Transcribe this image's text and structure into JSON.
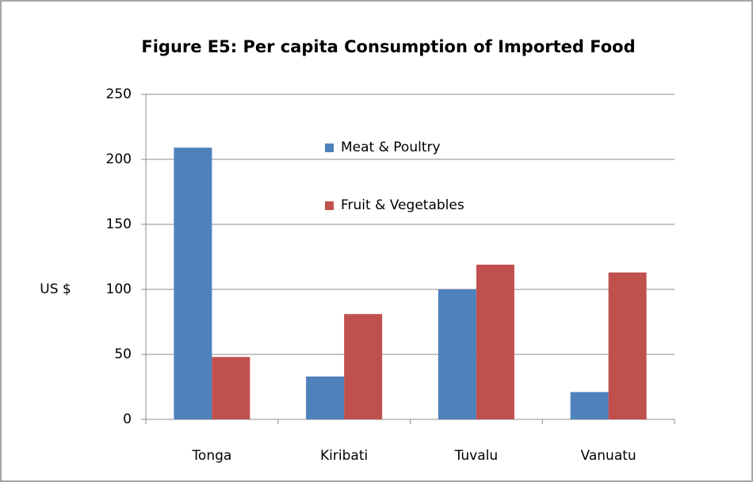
{
  "chart_data": {
    "type": "bar",
    "title": "Figure E5: Per capita Consumption of  Imported Food",
    "y_label": "US $",
    "categories": [
      "Tonga",
      "Kiribati",
      "Tuvalu",
      "Vanuatu"
    ],
    "series": [
      {
        "name": "Meat & Poultry",
        "color": "#4f81bd",
        "values": [
          209,
          33,
          100,
          21
        ]
      },
      {
        "name": "Fruit & Vegetables",
        "color": "#c0504d",
        "values": [
          48,
          81,
          119,
          113
        ]
      }
    ],
    "ylim": [
      0,
      250
    ],
    "yticks": [
      0,
      50,
      100,
      150,
      200,
      250
    ],
    "grid": true
  }
}
